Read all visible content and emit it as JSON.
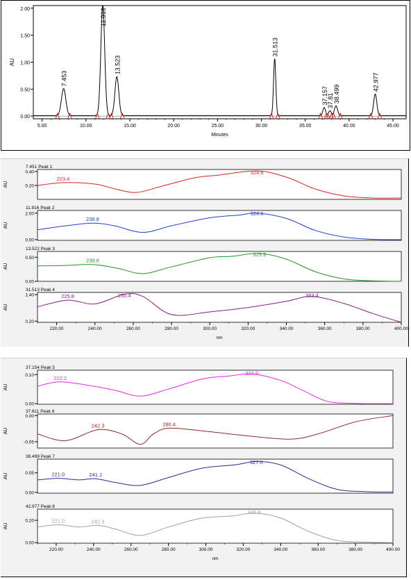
{
  "colors": {
    "chromatogram_line": "#000000",
    "baseline_marks": "#e00000",
    "peak1": "#e02020",
    "peak2": "#2040d0",
    "peak3": "#229922",
    "peak4": "#8b1a8b",
    "peak5": "#ee22ee",
    "peak6": "#8b2a2a",
    "peak7": "#2a2a99",
    "peak8": "#a0a0a0"
  },
  "chart_data": [
    {
      "type": "line",
      "xlabel": "Minutes",
      "ylabel": "AU",
      "xlim": [
        4,
        46.5
      ],
      "ylim": [
        -0.05,
        2.05
      ],
      "xticks": [
        "5.00",
        "10.00",
        "15.00",
        "20.00",
        "25.00",
        "30.00",
        "35.00",
        "40.00",
        "45.00"
      ],
      "yticks": [
        "0.00",
        "0.50",
        "1.00",
        "1.50",
        "2.00"
      ],
      "peaks": [
        {
          "rt": 7.453,
          "height": 0.5,
          "width": 0.25,
          "label": "7.453"
        },
        {
          "rt": 11.916,
          "height": 2.05,
          "width": 0.22,
          "label": "11.916"
        },
        {
          "rt": 13.523,
          "height": 0.72,
          "width": 0.22,
          "label": "13.523"
        },
        {
          "rt": 31.513,
          "height": 1.05,
          "width": 0.13,
          "label": "31.513"
        },
        {
          "rt": 37.157,
          "height": 0.15,
          "width": 0.15,
          "label": "37.157"
        },
        {
          "rt": 37.811,
          "height": 0.09,
          "width": 0.15,
          "label": "37.81"
        },
        {
          "rt": 38.499,
          "height": 0.18,
          "width": 0.18,
          "label": "38.499"
        },
        {
          "rt": 42.977,
          "height": 0.4,
          "width": 0.18,
          "label": "42.977"
        }
      ]
    },
    {
      "type": "line",
      "title": "7.451 Peak 1",
      "ylabel": "AU",
      "color": "#e02020",
      "xlim": [
        210,
        400
      ],
      "ylim": [
        0.0,
        0.43
      ],
      "yticks": [
        "0.20",
        "0.40"
      ],
      "points": [
        [
          210,
          0.2
        ],
        [
          223.4,
          0.24
        ],
        [
          240,
          0.22
        ],
        [
          252,
          0.14
        ],
        [
          262,
          0.1
        ],
        [
          275,
          0.19
        ],
        [
          292,
          0.31
        ],
        [
          305,
          0.35
        ],
        [
          324.6,
          0.41
        ],
        [
          340,
          0.32
        ],
        [
          355,
          0.15
        ],
        [
          370,
          0.05
        ],
        [
          385,
          0.02
        ],
        [
          400,
          0.02
        ]
      ],
      "annotations": [
        {
          "x": 223.4,
          "text": "223.4"
        },
        {
          "x": 324.6,
          "text": "324.6"
        }
      ]
    },
    {
      "type": "line",
      "title": "11.916 Peak 2",
      "ylabel": "AU",
      "color": "#2040d0",
      "xlim": [
        210,
        400
      ],
      "ylim": [
        -0.05,
        2.2
      ],
      "yticks": [
        "0.00",
        "2.00"
      ],
      "points": [
        [
          210,
          0.75
        ],
        [
          225,
          1.05
        ],
        [
          238.8,
          1.25
        ],
        [
          250,
          1.05
        ],
        [
          265,
          0.55
        ],
        [
          280,
          1.05
        ],
        [
          300,
          1.65
        ],
        [
          315,
          1.85
        ],
        [
          324.6,
          2.0
        ],
        [
          340,
          1.6
        ],
        [
          355,
          0.7
        ],
        [
          370,
          0.2
        ],
        [
          385,
          0.03
        ],
        [
          400,
          0.0
        ]
      ],
      "annotations": [
        {
          "x": 238.8,
          "text": "238.8"
        },
        {
          "x": 324.6,
          "text": "324.6"
        }
      ]
    },
    {
      "type": "line",
      "title": "13.522 Peak 3",
      "ylabel": "AU",
      "color": "#229922",
      "xlim": [
        210,
        400
      ],
      "ylim": [
        0.0,
        0.62
      ],
      "yticks": [
        "0.00",
        "0.50"
      ],
      "points": [
        [
          210,
          0.32
        ],
        [
          225,
          0.33
        ],
        [
          238.8,
          0.35
        ],
        [
          252,
          0.27
        ],
        [
          265,
          0.16
        ],
        [
          280,
          0.3
        ],
        [
          300,
          0.49
        ],
        [
          312,
          0.52
        ],
        [
          325.9,
          0.58
        ],
        [
          340,
          0.46
        ],
        [
          355,
          0.2
        ],
        [
          370,
          0.05
        ],
        [
          385,
          0.01
        ],
        [
          400,
          0.0
        ]
      ],
      "annotations": [
        {
          "x": 238.8,
          "text": "238.8"
        },
        {
          "x": 325.9,
          "text": "325.9"
        }
      ]
    },
    {
      "type": "line",
      "title": "31.513 Peak 4",
      "ylabel": "AU",
      "color": "#8b1a8b",
      "xlim": [
        210,
        400
      ],
      "ylim": [
        0.15,
        1.5
      ],
      "yticks": [
        "0.20",
        "1.40"
      ],
      "points": [
        [
          210,
          0.85
        ],
        [
          225.8,
          1.15
        ],
        [
          240,
          0.98
        ],
        [
          255.4,
          1.42
        ],
        [
          265,
          1.32
        ],
        [
          280,
          0.5
        ],
        [
          300,
          0.62
        ],
        [
          320,
          0.82
        ],
        [
          340,
          1.1
        ],
        [
          353.4,
          1.32
        ],
        [
          370,
          1.0
        ],
        [
          385,
          0.55
        ],
        [
          400,
          0.15
        ]
      ],
      "annotations": [
        {
          "x": 225.8,
          "text": "225.8"
        },
        {
          "x": 255.4,
          "text": "255.4"
        },
        {
          "x": 353.4,
          "text": "353.4"
        }
      ]
    },
    {
      "type": "line",
      "title": "37.154 Peak 5",
      "ylabel": "AU",
      "color": "#ee22ee",
      "xlim": [
        210,
        400
      ],
      "ylim": [
        -0.002,
        0.115
      ],
      "yticks": [
        "0.00",
        "0.10"
      ],
      "points": [
        [
          210,
          0.06
        ],
        [
          222.2,
          0.075
        ],
        [
          240,
          0.06
        ],
        [
          252,
          0.045
        ],
        [
          265,
          0.026
        ],
        [
          280,
          0.05
        ],
        [
          298,
          0.085
        ],
        [
          312,
          0.095
        ],
        [
          324.6,
          0.102
        ],
        [
          340,
          0.08
        ],
        [
          352,
          0.045
        ],
        [
          365,
          0.008
        ],
        [
          380,
          0.001
        ],
        [
          400,
          0.0
        ]
      ],
      "annotations": [
        {
          "x": 222.2,
          "text": "222.2"
        },
        {
          "x": 324.6,
          "text": "324.6"
        }
      ]
    },
    {
      "type": "line",
      "title": "37.811 Peak 6",
      "ylabel": "AU",
      "color": "#8b2a2a",
      "xlim": [
        210,
        400
      ],
      "ylim": [
        -0.062,
        0.003
      ],
      "yticks": [
        "0.00",
        "-0.05"
      ],
      "points": [
        [
          210,
          -0.035
        ],
        [
          225,
          -0.048
        ],
        [
          242.3,
          -0.027
        ],
        [
          255,
          -0.035
        ],
        [
          265,
          -0.055
        ],
        [
          272,
          -0.035
        ],
        [
          280.4,
          -0.024
        ],
        [
          300,
          -0.03
        ],
        [
          320,
          -0.038
        ],
        [
          345,
          -0.045
        ],
        [
          360,
          -0.035
        ],
        [
          380,
          -0.012
        ],
        [
          400,
          0.0
        ]
      ],
      "annotations": [
        {
          "x": 242.3,
          "text": "242.3"
        },
        {
          "x": 280.4,
          "text": "280.4"
        }
      ]
    },
    {
      "type": "line",
      "title": "38.499 Peak 7",
      "ylabel": "AU",
      "color": "#2a2a99",
      "xlim": [
        210,
        400
      ],
      "ylim": [
        -0.002,
        0.085
      ],
      "yticks": [
        "0.00",
        "0.05"
      ],
      "points": [
        [
          210,
          0.032
        ],
        [
          221,
          0.036
        ],
        [
          232,
          0.032
        ],
        [
          241.1,
          0.035
        ],
        [
          252,
          0.025
        ],
        [
          265,
          0.018
        ],
        [
          280,
          0.038
        ],
        [
          298,
          0.062
        ],
        [
          315,
          0.07
        ],
        [
          327,
          0.079
        ],
        [
          340,
          0.07
        ],
        [
          355,
          0.035
        ],
        [
          370,
          0.008
        ],
        [
          385,
          0.002
        ],
        [
          400,
          0.001
        ]
      ],
      "annotations": [
        {
          "x": 221.0,
          "text": "221.0"
        },
        {
          "x": 241.1,
          "text": "241.1"
        },
        {
          "x": 327.0,
          "text": "327.0"
        }
      ]
    },
    {
      "type": "line",
      "title": "42.977 Peak 8",
      "ylabel": "AU",
      "color": "#a0a0a0",
      "xlim": [
        210,
        400
      ],
      "ylim": [
        -0.005,
        0.3
      ],
      "yticks": [
        "0.00",
        "0.20"
      ],
      "xlabel": "nm",
      "xticks": [
        "220.00",
        "240.00",
        "260.00",
        "280.00",
        "300.00",
        "320.00",
        "340.00",
        "360.00",
        "380.00",
        "400.00"
      ],
      "points": [
        [
          210,
          0.14
        ],
        [
          221,
          0.16
        ],
        [
          232,
          0.14
        ],
        [
          242.3,
          0.155
        ],
        [
          252,
          0.12
        ],
        [
          265,
          0.065
        ],
        [
          280,
          0.14
        ],
        [
          298,
          0.22
        ],
        [
          315,
          0.24
        ],
        [
          325.8,
          0.265
        ],
        [
          340,
          0.22
        ],
        [
          355,
          0.1
        ],
        [
          370,
          0.02
        ],
        [
          385,
          0.005
        ],
        [
          400,
          0.0
        ]
      ],
      "annotations": [
        {
          "x": 221.0,
          "text": "221.0"
        },
        {
          "x": 242.3,
          "text": "242.3"
        },
        {
          "x": 325.8,
          "text": "325.8"
        }
      ]
    }
  ],
  "spectra_axis": {
    "xlabel": "nm",
    "xticks": [
      "220.00",
      "240.00",
      "260.00",
      "280.00",
      "300.00",
      "320.00",
      "340.00",
      "360.00",
      "380.00",
      "400.00"
    ]
  }
}
